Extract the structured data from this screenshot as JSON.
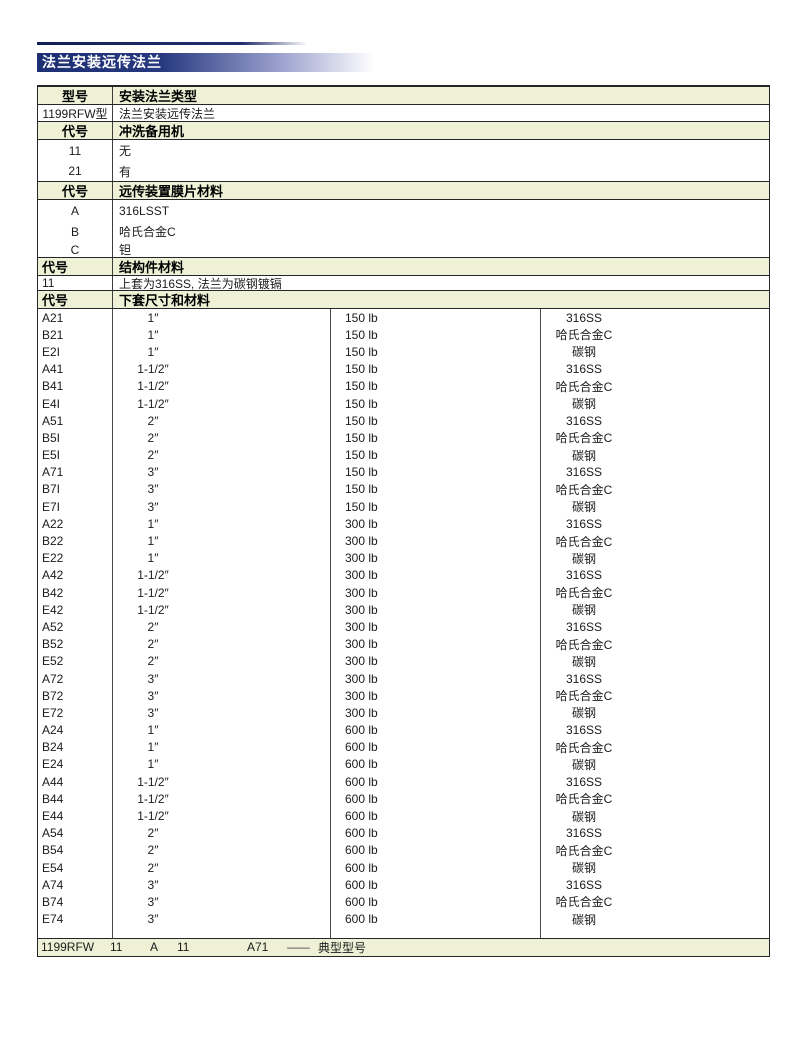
{
  "page_title": "法兰安装远传法兰",
  "accent_color": "#1d2f73",
  "header_bg": "#eef1d6",
  "sections": [
    {
      "code_header": "型号",
      "desc_header": "安装法兰类型",
      "align": "center",
      "rows": [
        {
          "code": "1199RFW型",
          "desc": "法兰安装远传法兰"
        }
      ]
    },
    {
      "code_header": "代号",
      "desc_header": "冲洗备用机",
      "align": "center",
      "rows": [
        {
          "code": "11",
          "desc": "无"
        },
        {
          "code": "21",
          "desc": "有"
        }
      ]
    },
    {
      "code_header": "代号",
      "desc_header": "远传装置膜片材料",
      "align": "center",
      "rows": [
        {
          "code": "A",
          "desc": "316LSST"
        },
        {
          "code": "B",
          "desc": "哈氏合金C"
        },
        {
          "code": "C",
          "desc": "钽"
        }
      ]
    },
    {
      "code_header": "代号",
      "desc_header": "结构件材料",
      "align": "left",
      "rows": [
        {
          "code": "11",
          "desc": "上套为316SS, 法兰为碳钢镀镉"
        }
      ]
    }
  ],
  "flange_table": {
    "code_header": "代号",
    "desc_header": "下套尺寸和材料",
    "rows": [
      {
        "code": "A21",
        "size": "1″",
        "rating": "150 lb",
        "material": "316SS"
      },
      {
        "code": "B21",
        "size": "1″",
        "rating": "150 lb",
        "material": "哈氏合金C"
      },
      {
        "code": "E2I",
        "size": "1″",
        "rating": "150 lb",
        "material": "碳钢"
      },
      {
        "code": "A41",
        "size": "1-1/2″",
        "rating": "150 lb",
        "material": "316SS"
      },
      {
        "code": "B41",
        "size": "1-1/2″",
        "rating": "150 lb",
        "material": "哈氏合金C"
      },
      {
        "code": "E4I",
        "size": "1-1/2″",
        "rating": "150 lb",
        "material": "碳钢"
      },
      {
        "code": "A51",
        "size": "2″",
        "rating": "150 lb",
        "material": "316SS"
      },
      {
        "code": "B5I",
        "size": "2″",
        "rating": "150 lb",
        "material": "哈氏合金C"
      },
      {
        "code": "E5I",
        "size": "2″",
        "rating": "150 lb",
        "material": "碳钢"
      },
      {
        "code": "A71",
        "size": "3″",
        "rating": "150 lb",
        "material": "316SS"
      },
      {
        "code": "B7I",
        "size": "3″",
        "rating": "150 lb",
        "material": "哈氏合金C"
      },
      {
        "code": "E7I",
        "size": "3″",
        "rating": "150 lb",
        "material": "碳钢"
      },
      {
        "code": "A22",
        "size": "1″",
        "rating": "300 lb",
        "material": "316SS"
      },
      {
        "code": "B22",
        "size": "1″",
        "rating": "300 lb",
        "material": "哈氏合金C"
      },
      {
        "code": "E22",
        "size": "1″",
        "rating": "300 lb",
        "material": "碳钢"
      },
      {
        "code": "A42",
        "size": "1-1/2″",
        "rating": "300 lb",
        "material": "316SS"
      },
      {
        "code": "B42",
        "size": "1-1/2″",
        "rating": "300 lb",
        "material": "哈氏合金C"
      },
      {
        "code": "E42",
        "size": "1-1/2″",
        "rating": "300 lb",
        "material": "碳钢"
      },
      {
        "code": "A52",
        "size": "2″",
        "rating": "300 lb",
        "material": "316SS"
      },
      {
        "code": "B52",
        "size": "2″",
        "rating": "300 lb",
        "material": "哈氏合金C"
      },
      {
        "code": "E52",
        "size": "2″",
        "rating": "300 lb",
        "material": "碳钢"
      },
      {
        "code": "A72",
        "size": "3″",
        "rating": "300 lb",
        "material": "316SS"
      },
      {
        "code": "B72",
        "size": "3″",
        "rating": "300 lb",
        "material": "哈氏合金C"
      },
      {
        "code": "E72",
        "size": "3″",
        "rating": "300 lb",
        "material": "碳钢"
      },
      {
        "code": "A24",
        "size": "1″",
        "rating": "600 lb",
        "material": "316SS"
      },
      {
        "code": "B24",
        "size": "1″",
        "rating": "600 lb",
        "material": "哈氏合金C"
      },
      {
        "code": "E24",
        "size": "1″",
        "rating": "600 lb",
        "material": "碳钢"
      },
      {
        "code": "A44",
        "size": "1-1/2″",
        "rating": "600 lb",
        "material": "316SS"
      },
      {
        "code": "B44",
        "size": "1-1/2″",
        "rating": "600 lb",
        "material": "哈氏合金C"
      },
      {
        "code": "E44",
        "size": "1-1/2″",
        "rating": "600 lb",
        "material": "碳钢"
      },
      {
        "code": "A54",
        "size": "2″",
        "rating": "600 lb",
        "material": "316SS"
      },
      {
        "code": "B54",
        "size": "2″",
        "rating": "600 lb",
        "material": "哈氏合金C"
      },
      {
        "code": "E54",
        "size": "2″",
        "rating": "600 lb",
        "material": "碳钢"
      },
      {
        "code": "A74",
        "size": "3″",
        "rating": "600 lb",
        "material": "316SS"
      },
      {
        "code": "B74",
        "size": "3″",
        "rating": "600 lb",
        "material": "哈氏合金C"
      },
      {
        "code": "E74",
        "size": "3″",
        "rating": "600 lb",
        "material": "碳钢"
      }
    ]
  },
  "example_model": {
    "model": "1199RFW",
    "codes": [
      "11",
      "A",
      "11",
      "A71"
    ],
    "dash": "——",
    "label": "典型型号"
  }
}
